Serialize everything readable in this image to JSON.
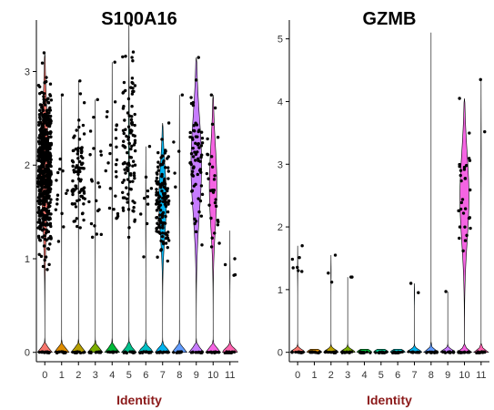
{
  "chart_data": [
    {
      "type": "violin",
      "title": "S100A16",
      "xlabel": "Identity",
      "ylabel": "",
      "categories": [
        "0",
        "1",
        "2",
        "3",
        "4",
        "5",
        "6",
        "7",
        "8",
        "9",
        "10",
        "11"
      ],
      "yticks": [
        0,
        1,
        2,
        3
      ],
      "ylim": [
        -0.1,
        3.55
      ],
      "violin_colors": [
        "#F8766D",
        "#DE8C00",
        "#B79F00",
        "#7CAE00",
        "#00BA38",
        "#00C08B",
        "#00BFC4",
        "#00B4F0",
        "#619CFF",
        "#C77CFF",
        "#F564E3",
        "#FF64B0"
      ],
      "max_values": [
        3.2,
        2.75,
        2.9,
        2.7,
        3.1,
        3.5,
        2.2,
        2.45,
        2.75,
        3.15,
        2.75,
        1.3
      ],
      "expressing_points": [
        600,
        15,
        90,
        20,
        25,
        110,
        10,
        140,
        5,
        70,
        30,
        4
      ],
      "point_ranges": [
        [
          0.8,
          3.2
        ],
        [
          0.9,
          2.75
        ],
        [
          0.9,
          2.9
        ],
        [
          0.8,
          2.7
        ],
        [
          0.9,
          3.1
        ],
        [
          0.85,
          3.5
        ],
        [
          0.8,
          2.2
        ],
        [
          0.8,
          2.45
        ],
        [
          1.0,
          2.75
        ],
        [
          0.85,
          3.15
        ],
        [
          0.8,
          2.75
        ],
        [
          0.7,
          1.0
        ]
      ],
      "violin_peaks": [
        0.5,
        0.02,
        0.02,
        0.02,
        0.02,
        0.05,
        0.02,
        0.5,
        0.02,
        0.7,
        0.5,
        0.02
      ]
    },
    {
      "type": "violin",
      "title": "GZMB",
      "xlabel": "Identity",
      "ylabel": "",
      "categories": [
        "0",
        "1",
        "2",
        "3",
        "4",
        "5",
        "6",
        "7",
        "8",
        "9",
        "10",
        "11"
      ],
      "yticks": [
        0,
        1,
        2,
        3,
        4,
        5
      ],
      "ylim": [
        -0.15,
        5.3
      ],
      "violin_colors": [
        "#F8766D",
        "#DE8C00",
        "#B79F00",
        "#7CAE00",
        "#00BA38",
        "#00C08B",
        "#00BFC4",
        "#00B4F0",
        "#619CFF",
        "#C77CFF",
        "#F564E3",
        "#FF64B0"
      ],
      "max_values": [
        1.7,
        0.05,
        1.55,
        1.2,
        0.05,
        0.05,
        0.05,
        1.1,
        5.1,
        0.97,
        4.05,
        4.35
      ],
      "expressing_points": [
        7,
        0,
        3,
        2,
        0,
        0,
        0,
        2,
        0,
        1,
        30,
        2
      ],
      "point_ranges": [
        [
          0.95,
          1.7
        ],
        [
          0,
          0
        ],
        [
          1.0,
          1.55
        ],
        [
          1.2,
          1.2
        ],
        [
          0,
          0
        ],
        [
          0,
          0
        ],
        [
          0,
          0
        ],
        [
          0.78,
          1.1
        ],
        [
          0,
          0
        ],
        [
          0.97,
          0.97
        ],
        [
          0.9,
          4.05
        ],
        [
          2.0,
          4.35
        ]
      ],
      "violin_peaks": [
        0.02,
        0.02,
        0.02,
        0.02,
        0.02,
        0.02,
        0.02,
        0.02,
        0.02,
        0.02,
        0.6,
        0.02
      ]
    }
  ],
  "colors": {
    "axis_label": "#8B1A1A",
    "axis_line": "#000000",
    "point": "#000000"
  }
}
